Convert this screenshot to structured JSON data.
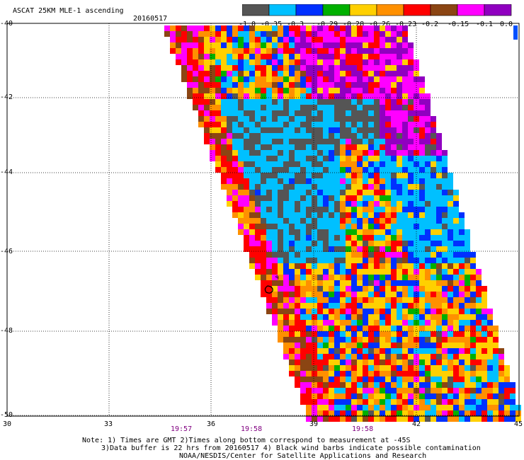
{
  "header": {
    "title": "ASCAT 25KM MLE-1 ascending",
    "date": "20160517"
  },
  "colorbar": {
    "labels": [
      "-1.0",
      "-0.35",
      "-0.3",
      "-0.29",
      "-0.28",
      "-0.26",
      "-0.23",
      "-0.2",
      "-0.15",
      "-0.1",
      "0.0"
    ],
    "colors": [
      "#555555",
      "#00c0ff",
      "#0030ff",
      "#00b000",
      "#ffd000",
      "#ff9000",
      "#ff0000",
      "#8b4513",
      "#ff00ff",
      "#9000c0"
    ]
  },
  "axes": {
    "y_labels": [
      "-40",
      "-42",
      "-44",
      "-46",
      "-48",
      "-50"
    ],
    "x_labels": [
      "30",
      "33",
      "36",
      "39",
      "42",
      "45"
    ],
    "time_labels": [
      "19:57",
      "19:58",
      "19:58"
    ]
  },
  "notes": {
    "line1": "Note: 1) Times are GMT 2)Times along bottom correspond to measurement at -45S",
    "line2": "3)Data buffer is 22 hrs from 20160517 4) Black wind barbs indicate possible contamination",
    "line3": "NOAA/NESDIS/Center for Satellite Applications and Research"
  }
}
